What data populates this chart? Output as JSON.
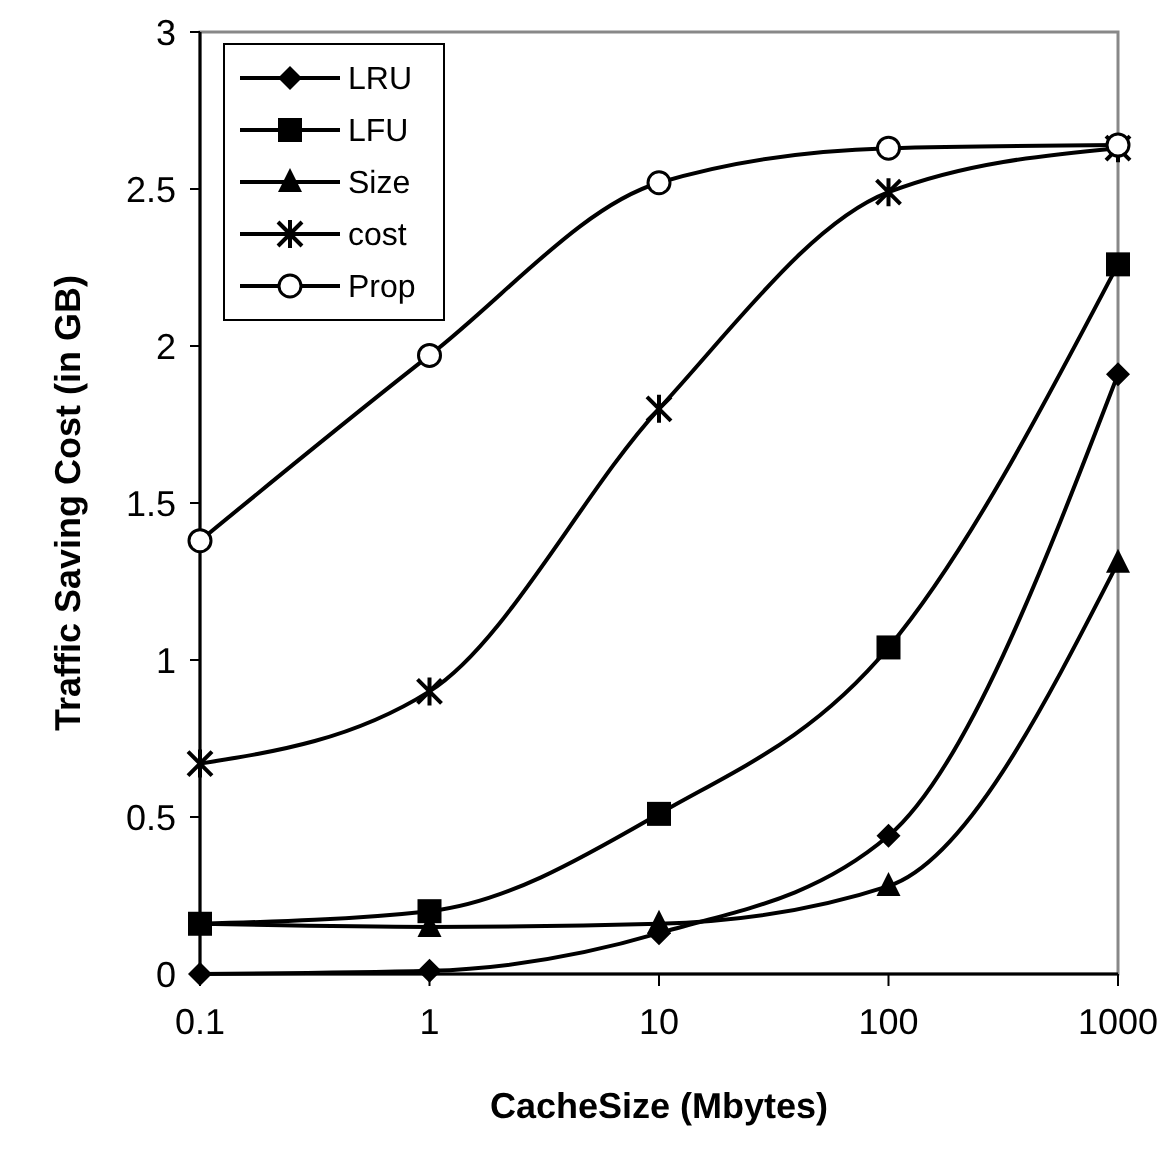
{
  "chart_data": {
    "type": "line",
    "xlabel": "CacheSize (Mbytes)",
    "ylabel": "Traffic Saving Cost (in GB)",
    "log": "x",
    "x": [
      0.1,
      1,
      10,
      100,
      1000
    ],
    "xlim": [
      0.1,
      1000
    ],
    "xticks": [
      0.1,
      1,
      10,
      100,
      1000
    ],
    "ylim": [
      0,
      3
    ],
    "yticks": [
      0,
      0.5,
      1,
      1.5,
      2,
      2.5,
      3
    ],
    "grid": false,
    "legend": "top left",
    "line_style": "solid",
    "series": [
      {
        "name": "LRU",
        "color": "#000000",
        "marker": "diamond",
        "values": [
          0,
          0.01,
          0.13,
          0.44,
          1.91
        ]
      },
      {
        "name": "LFU",
        "color": "#000000",
        "marker": "square",
        "values": [
          0.16,
          0.2,
          0.51,
          1.04,
          2.26
        ]
      },
      {
        "name": "Size",
        "color": "#000000",
        "marker": "triangle",
        "values": [
          0.16,
          0.15,
          0.16,
          0.28,
          1.31
        ]
      },
      {
        "name": "cost",
        "color": "#000000",
        "marker": "cross",
        "values": [
          0.67,
          0.9,
          1.8,
          2.49,
          2.63
        ]
      },
      {
        "name": "Prop",
        "color": "#000000",
        "marker": "circle",
        "values": [
          1.38,
          1.97,
          2.52,
          2.63,
          2.64
        ]
      }
    ]
  }
}
